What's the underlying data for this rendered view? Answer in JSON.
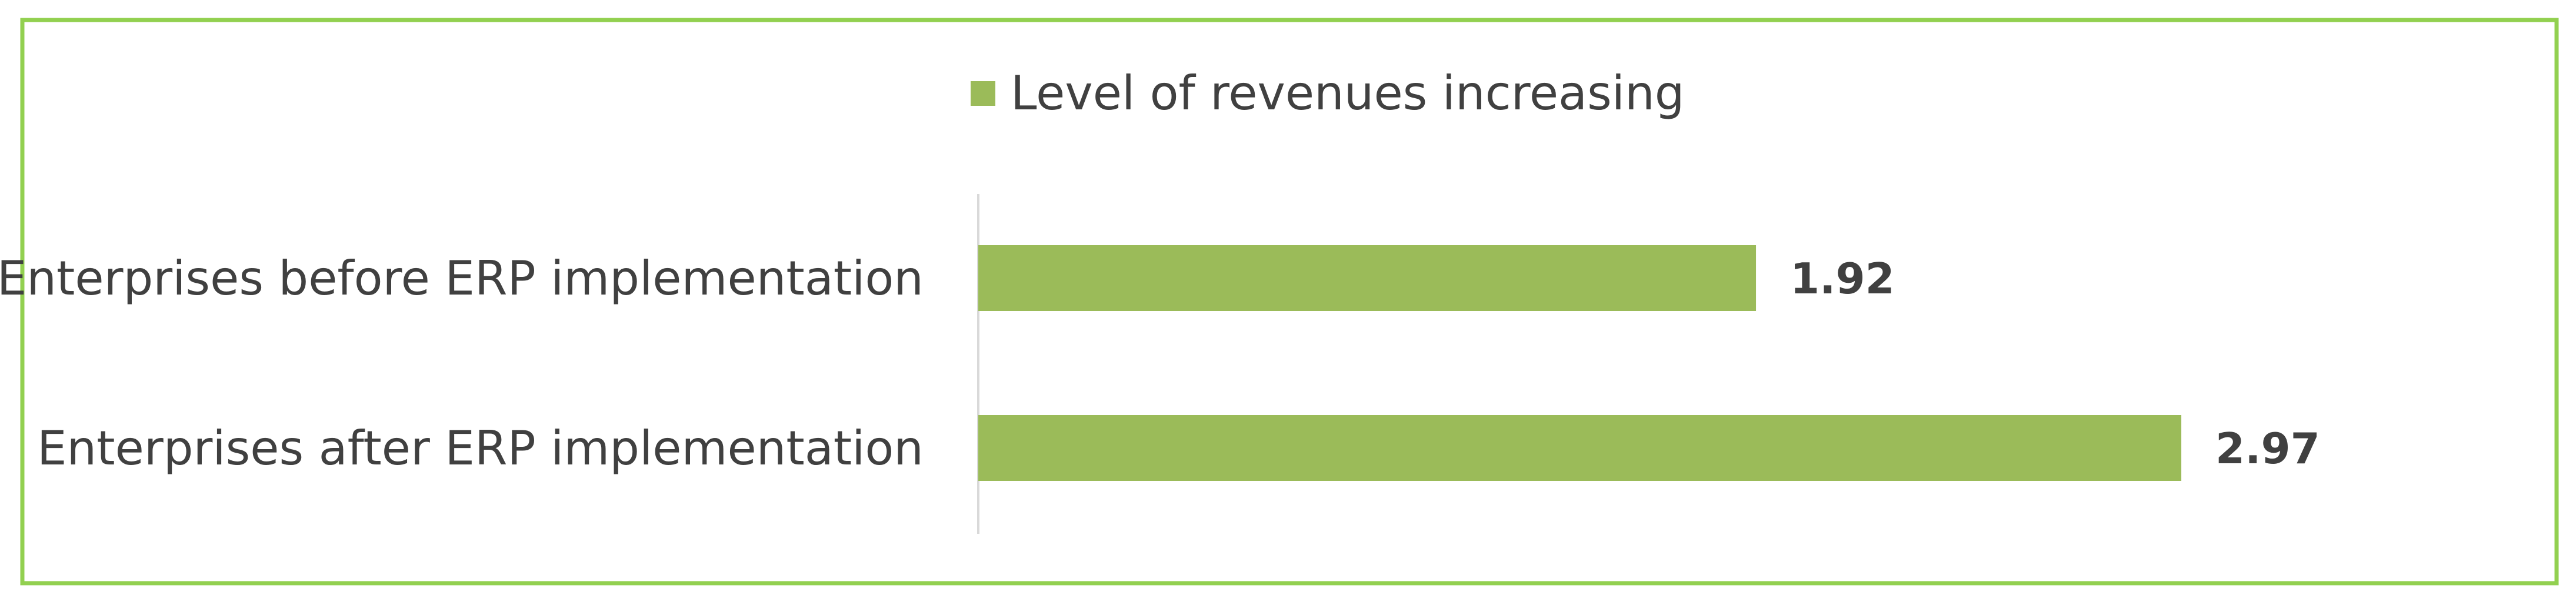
{
  "chart_data": {
    "type": "bar",
    "orientation": "horizontal",
    "categories": [
      "Enterprises before ERP implementation",
      "Enterprises after ERP implementation"
    ],
    "series": [
      {
        "name": "Level of revenues increasing",
        "values": [
          1.92,
          2.97
        ],
        "color": "#9bbb59"
      }
    ],
    "data_labels": [
      "1.92",
      "2.97"
    ],
    "xlim": [
      0,
      3.5
    ],
    "grid": false,
    "legend_position": "top",
    "frame_color": "#92d050"
  }
}
